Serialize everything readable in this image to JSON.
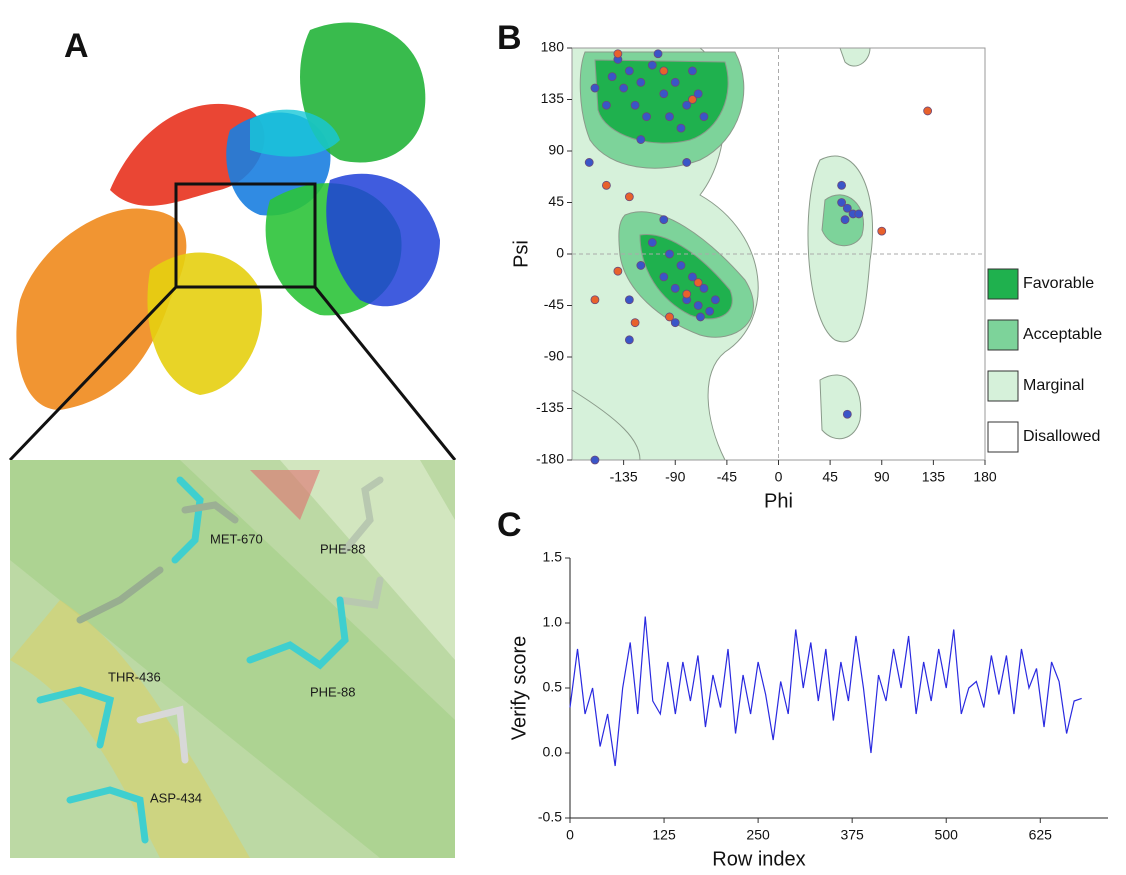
{
  "panel_labels": [
    "A",
    "B",
    "C"
  ],
  "structure": {
    "residue_labels": [
      "MET-670",
      "PHE-88",
      "THR-436",
      "PHE-88",
      "ASP-434"
    ]
  },
  "chart_data": [
    {
      "type": "scatter",
      "x_label": "Phi",
      "y_label": "Psi",
      "xlim": [
        -180,
        180
      ],
      "xticks": [
        -135,
        -90,
        -45,
        0,
        45,
        90,
        135,
        180
      ],
      "ylim": [
        -180,
        180
      ],
      "yticks": [
        -180,
        -135,
        -90,
        -45,
        0,
        45,
        90,
        135,
        180
      ],
      "zero_lines": true,
      "regions": [
        {
          "name": "Favorable",
          "color": "#1fb14e"
        },
        {
          "name": "Acceptable",
          "color": "#7dd39a"
        },
        {
          "name": "Marginal",
          "color": "#d6f1da"
        },
        {
          "name": "Disallowed",
          "color": "#ffffff"
        }
      ],
      "series": [
        {
          "color": "#3a55c8",
          "x": [
            -140,
            -130,
            -120,
            -110,
            -100,
            -90,
            -80,
            -75,
            -125,
            -135,
            -115,
            -95,
            -85,
            -70,
            -65,
            -145,
            -105,
            -120,
            -80,
            -150,
            -100,
            -90,
            -80,
            -70,
            -65,
            -75,
            -85,
            -95,
            -60,
            -110,
            -120,
            -55,
            -68,
            -100,
            -130,
            -90,
            55,
            60,
            65,
            58,
            70,
            55,
            -160,
            -165,
            60,
            -160,
            -130
          ],
          "values": [
            170,
            160,
            150,
            165,
            140,
            150,
            130,
            160,
            130,
            145,
            120,
            120,
            110,
            140,
            120,
            155,
            175,
            100,
            80,
            130,
            -20,
            -30,
            -40,
            -45,
            -30,
            -20,
            -10,
            0,
            -50,
            10,
            -10,
            -40,
            -55,
            30,
            -40,
            -60,
            45,
            40,
            35,
            30,
            35,
            60,
            145,
            80,
            -140,
            -180,
            -75
          ]
        },
        {
          "color": "#e8612c",
          "x": [
            -140,
            -100,
            -75,
            -150,
            -130,
            -140,
            -125,
            -80,
            -70,
            130,
            90,
            -160,
            -95
          ],
          "values": [
            175,
            160,
            135,
            60,
            50,
            -15,
            -60,
            -35,
            -25,
            125,
            20,
            -40,
            -55
          ]
        }
      ]
    },
    {
      "type": "line",
      "x_label": "Row index",
      "y_label": "Verify score",
      "xlim": [
        0,
        715
      ],
      "xticks": [
        0,
        125,
        250,
        375,
        500,
        625
      ],
      "ylim": [
        -0.5,
        1.5
      ],
      "yticks": [
        -0.5,
        {
          "value": 0,
          "label": "0.0"
        },
        0.5,
        {
          "value": 1,
          "label": "1.0"
        },
        1.5
      ],
      "series": [
        {
          "color": "#2a2ae0",
          "x": [
            0,
            10,
            20,
            30,
            40,
            50,
            60,
            70,
            80,
            90,
            100,
            110,
            120,
            130,
            140,
            150,
            160,
            170,
            180,
            190,
            200,
            210,
            220,
            230,
            240,
            250,
            260,
            270,
            280,
            290,
            300,
            310,
            320,
            330,
            340,
            350,
            360,
            370,
            380,
            390,
            400,
            410,
            420,
            430,
            440,
            450,
            460,
            470,
            480,
            490,
            500,
            510,
            520,
            530,
            540,
            550,
            560,
            570,
            580,
            590,
            600,
            610,
            620,
            630,
            640,
            650,
            660,
            670,
            680
          ],
          "values": [
            0.35,
            0.8,
            0.3,
            0.5,
            0.05,
            0.3,
            -0.1,
            0.5,
            0.85,
            0.3,
            1.05,
            0.4,
            0.3,
            0.7,
            0.3,
            0.7,
            0.4,
            0.75,
            0.2,
            0.6,
            0.35,
            0.8,
            0.15,
            0.6,
            0.3,
            0.7,
            0.45,
            0.1,
            0.55,
            0.3,
            0.95,
            0.5,
            0.85,
            0.4,
            0.8,
            0.25,
            0.7,
            0.4,
            0.9,
            0.5,
            0.0,
            0.6,
            0.4,
            0.8,
            0.5,
            0.9,
            0.3,
            0.7,
            0.4,
            0.8,
            0.5,
            0.95,
            0.3,
            0.5,
            0.55,
            0.35,
            0.75,
            0.45,
            0.75,
            0.3,
            0.8,
            0.5,
            0.65,
            0.2,
            0.7,
            0.55,
            0.15,
            0.4,
            0.42
          ]
        }
      ]
    }
  ]
}
